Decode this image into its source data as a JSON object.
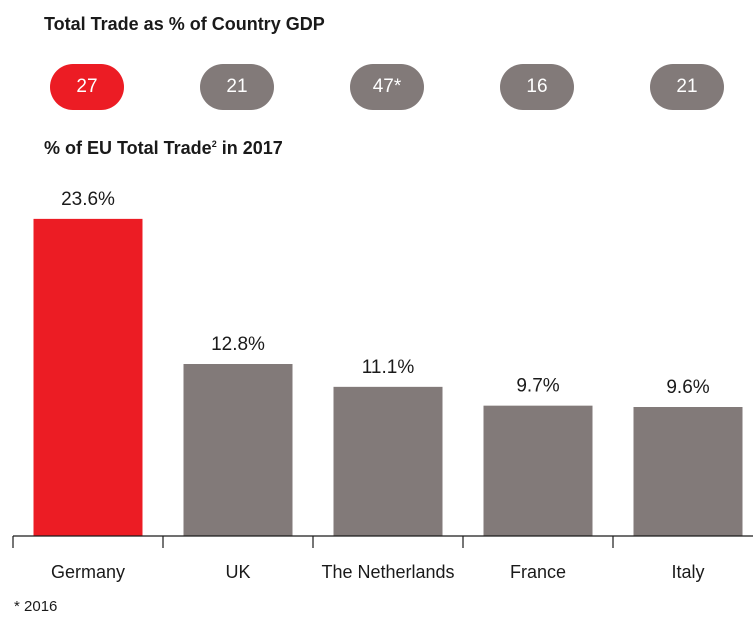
{
  "gdp": {
    "title": "Total Trade as % of Country GDP",
    "values": [
      "27",
      "21",
      "47*",
      "16",
      "21"
    ]
  },
  "colors": {
    "highlight": "#ec1c24",
    "default": "#827a79",
    "axis": "#1a1a1a",
    "text": "#1a1a1a"
  },
  "footnote": "* 2016",
  "chart_data": {
    "type": "bar",
    "title": "% of EU Total Trade",
    "title_footnote_marker": "2",
    "title_suffix": "in 2017",
    "categories": [
      "Germany",
      "UK",
      "The Netherlands",
      "France",
      "Italy"
    ],
    "values": [
      23.6,
      12.8,
      11.1,
      9.7,
      9.6
    ],
    "data_labels": [
      "23.6%",
      "12.8%",
      "11.1%",
      "9.7%",
      "9.6%"
    ],
    "highlight_index": 0,
    "xlabel": "",
    "ylabel": "",
    "ylim": [
      0,
      25.6
    ],
    "grid": false,
    "legend": "none"
  }
}
